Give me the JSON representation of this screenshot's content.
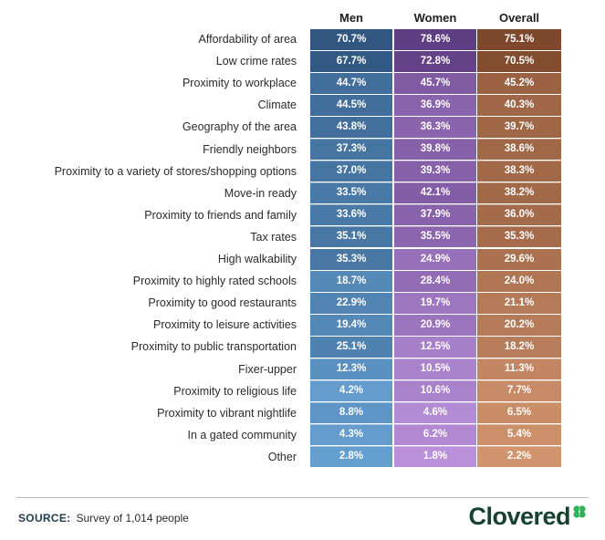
{
  "chart_data": {
    "type": "table",
    "title": "",
    "columns": [
      "Men",
      "Women",
      "Overall"
    ],
    "rows": [
      {
        "label": "Affordability of area",
        "men": "70.7%",
        "women": "78.6%",
        "overall": "75.1%",
        "values": [
          70.7,
          78.6,
          75.1
        ]
      },
      {
        "label": "Low crime rates",
        "men": "67.7%",
        "women": "72.8%",
        "overall": "70.5%",
        "values": [
          67.7,
          72.8,
          70.5
        ]
      },
      {
        "label": "Proximity to workplace",
        "men": "44.7%",
        "women": "45.7%",
        "overall": "45.2%",
        "values": [
          44.7,
          45.7,
          45.2
        ]
      },
      {
        "label": "Climate",
        "men": "44.5%",
        "women": "36.9%",
        "overall": "40.3%",
        "values": [
          44.5,
          36.9,
          40.3
        ]
      },
      {
        "label": "Geography of the area",
        "men": "43.8%",
        "women": "36.3%",
        "overall": "39.7%",
        "values": [
          43.8,
          36.3,
          39.7
        ]
      },
      {
        "label": "Friendly neighbors",
        "men": "37.3%",
        "women": "39.8%",
        "overall": "38.6%",
        "values": [
          37.3,
          39.8,
          38.6
        ]
      },
      {
        "label": "Proximity to a variety of stores/shopping options",
        "men": "37.0%",
        "women": "39.3%",
        "overall": "38.3%",
        "values": [
          37.0,
          39.3,
          38.3
        ]
      },
      {
        "label": "Move-in ready",
        "men": "33.5%",
        "women": "42.1%",
        "overall": "38.2%",
        "values": [
          33.5,
          42.1,
          38.2
        ]
      },
      {
        "label": "Proximity to friends and family",
        "men": "33.6%",
        "women": "37.9%",
        "overall": "36.0%",
        "values": [
          33.6,
          37.9,
          36.0
        ]
      },
      {
        "label": "Tax rates",
        "men": "35.1%",
        "women": "35.5%",
        "overall": "35.3%",
        "values": [
          35.1,
          35.5,
          35.3
        ]
      },
      {
        "label": "High walkability",
        "men": "35.3%",
        "women": "24.9%",
        "overall": "29.6%",
        "values": [
          35.3,
          24.9,
          29.6
        ]
      },
      {
        "label": "Proximity to highly rated schools",
        "men": "18.7%",
        "women": "28.4%",
        "overall": "24.0%",
        "values": [
          18.7,
          28.4,
          24.0
        ]
      },
      {
        "label": "Proximity to good restaurants",
        "men": "22.9%",
        "women": "19.7%",
        "overall": "21.1%",
        "values": [
          22.9,
          19.7,
          21.1
        ]
      },
      {
        "label": "Proximity to leisure activities",
        "men": "19.4%",
        "women": "20.9%",
        "overall": "20.2%",
        "values": [
          19.4,
          20.9,
          20.2
        ]
      },
      {
        "label": "Proximity to public transportation",
        "men": "25.1%",
        "women": "12.5%",
        "overall": "18.2%",
        "values": [
          25.1,
          12.5,
          18.2
        ]
      },
      {
        "label": "Fixer-upper",
        "men": "12.3%",
        "women": "10.5%",
        "overall": "11.3%",
        "values": [
          12.3,
          10.5,
          11.3
        ]
      },
      {
        "label": "Proximity to religious life",
        "men": "4.2%",
        "women": "10.6%",
        "overall": "7.7%",
        "values": [
          4.2,
          10.6,
          7.7
        ]
      },
      {
        "label": "Proximity to vibrant nightlife",
        "men": "8.8%",
        "women": "4.6%",
        "overall": "6.5%",
        "values": [
          8.8,
          4.6,
          6.5
        ]
      },
      {
        "label": "In a gated community",
        "men": "4.3%",
        "women": "6.2%",
        "overall": "5.4%",
        "values": [
          4.3,
          6.2,
          5.4
        ]
      },
      {
        "label": "Other",
        "men": "2.8%",
        "women": "1.8%",
        "overall": "2.2%",
        "values": [
          2.8,
          1.8,
          2.2
        ]
      }
    ],
    "color_scales": {
      "men": {
        "low": "#6aa6d8",
        "high": "#2b4f78"
      },
      "women": {
        "low": "#c095e0",
        "high": "#5e3c82"
      },
      "overall": {
        "low": "#d79a74",
        "high": "#7a4428"
      }
    }
  },
  "footer": {
    "source_label": "SOURCE:",
    "source_text": "Survey of 1,014 people"
  },
  "logo": {
    "text": "Clovered",
    "accent_color": "#2fb35a"
  }
}
